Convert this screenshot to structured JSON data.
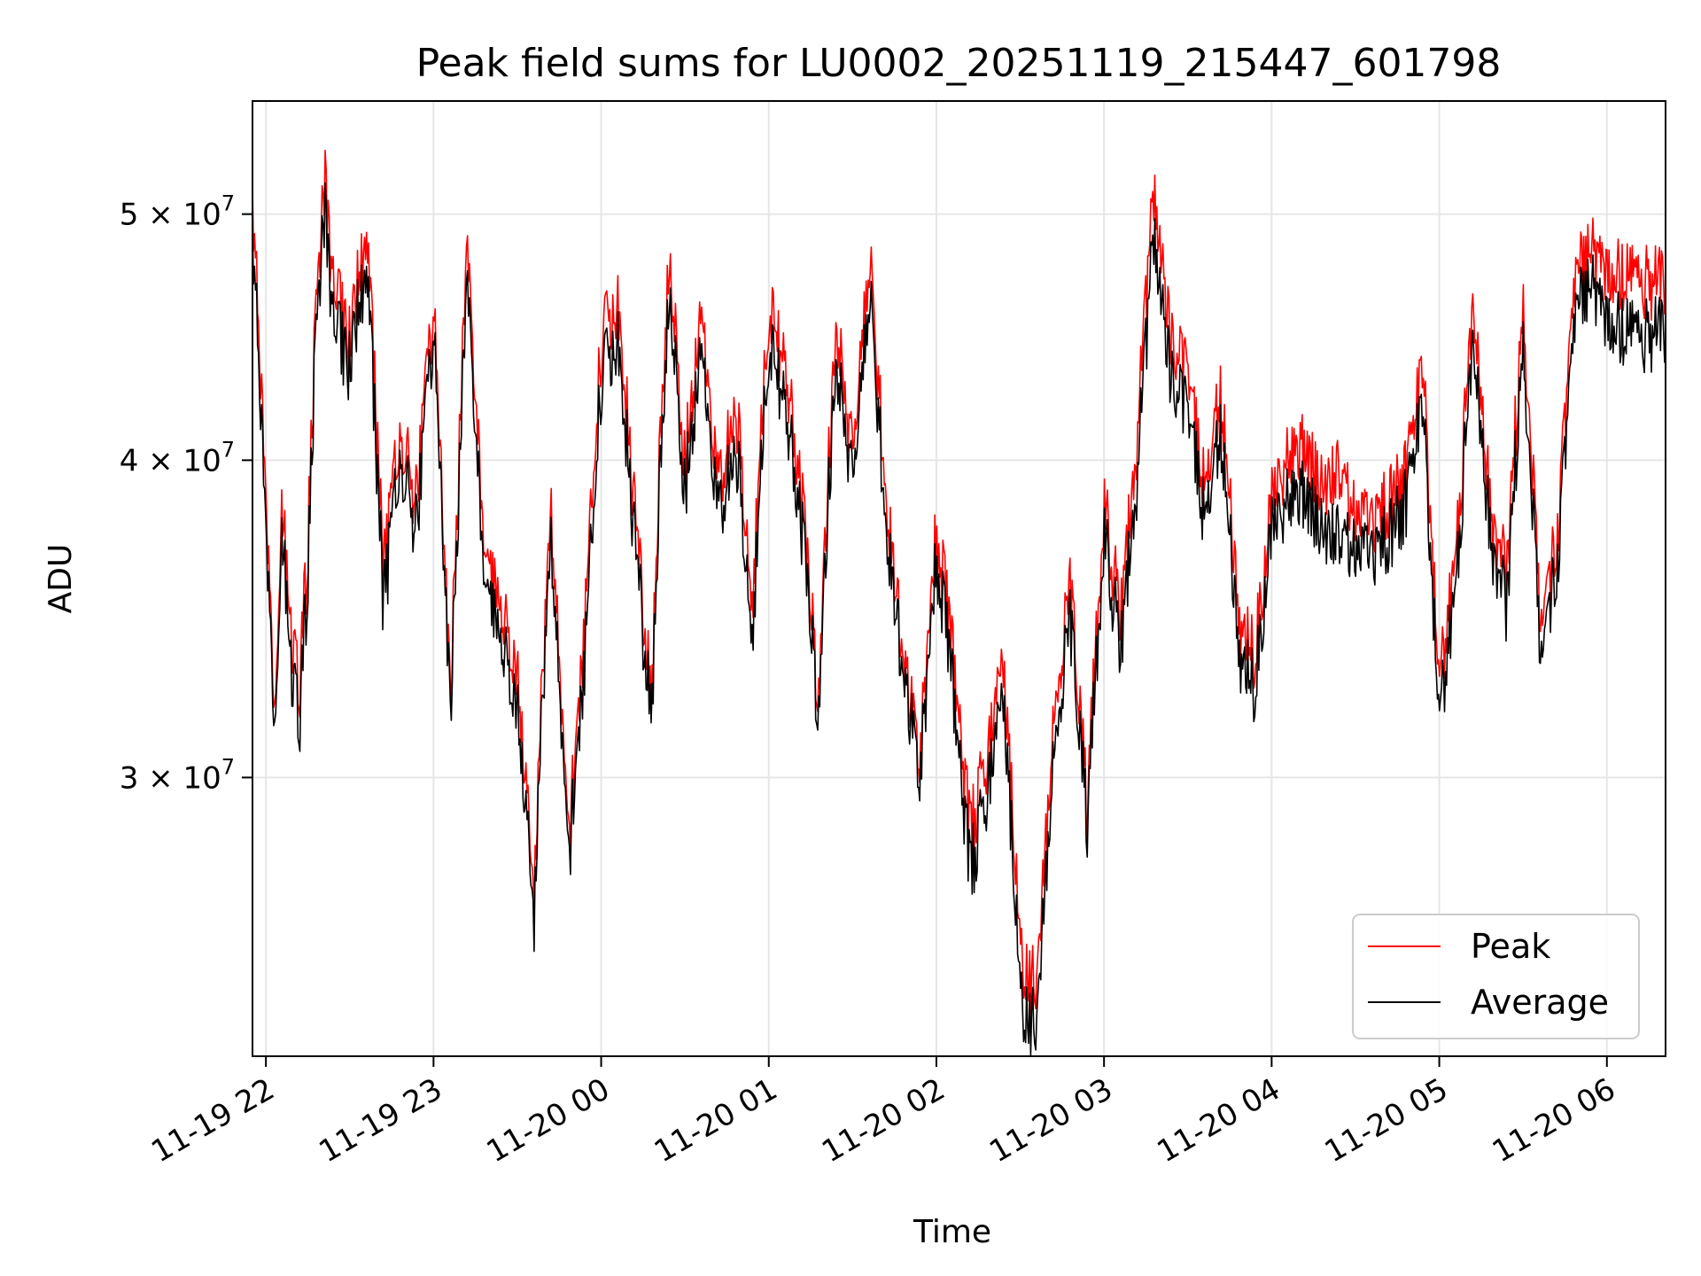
{
  "chart_data": {
    "type": "line",
    "title": "Peak field sums for LU0002_20251119_215447_601798",
    "xlabel": "Time",
    "ylabel": "ADU",
    "scale_y": "log",
    "grid": true,
    "legend_position": "lower-right",
    "xlim_hours": [
      -0.08,
      8.35
    ],
    "ylim": [
      23300000,
      55400000
    ],
    "x_ticks": [
      {
        "value": 0,
        "label": "11-19 22"
      },
      {
        "value": 1,
        "label": "11-19 23"
      },
      {
        "value": 2,
        "label": "11-20 00"
      },
      {
        "value": 3,
        "label": "11-20 01"
      },
      {
        "value": 4,
        "label": "11-20 02"
      },
      {
        "value": 5,
        "label": "11-20 03"
      },
      {
        "value": 6,
        "label": "11-20 04"
      },
      {
        "value": 7,
        "label": "11-20 05"
      },
      {
        "value": 8,
        "label": "11-20 06"
      }
    ],
    "y_ticks": [
      {
        "value": 30000000,
        "mantissa": "3",
        "exponent": "7"
      },
      {
        "value": 40000000,
        "mantissa": "4",
        "exponent": "7"
      },
      {
        "value": 50000000,
        "mantissa": "5",
        "exponent": "7"
      }
    ],
    "x_units": "hours since 2025-11-19 22:00",
    "series": [
      {
        "name": "Peak",
        "color": "#ff0000",
        "x": [
          -0.08,
          0.0,
          0.05,
          0.1,
          0.15,
          0.2,
          0.25,
          0.3,
          0.35,
          0.4,
          0.5,
          0.6,
          0.7,
          0.8,
          0.9,
          1.0,
          1.1,
          1.2,
          1.3,
          1.4,
          1.5,
          1.6,
          1.7,
          1.8,
          1.9,
          2.0,
          2.1,
          2.2,
          2.3,
          2.4,
          2.5,
          2.6,
          2.7,
          2.8,
          2.9,
          3.0,
          3.1,
          3.2,
          3.3,
          3.4,
          3.5,
          3.6,
          3.7,
          3.8,
          3.9,
          4.0,
          4.1,
          4.2,
          4.3,
          4.4,
          4.5,
          4.6,
          4.7,
          4.8,
          4.9,
          5.0,
          5.1,
          5.2,
          5.3,
          5.4,
          5.5,
          5.6,
          5.7,
          5.8,
          5.9,
          6.0,
          6.1,
          6.2,
          6.3,
          6.4,
          6.5,
          6.6,
          6.7,
          6.8,
          6.9,
          7.0,
          7.1,
          7.2,
          7.3,
          7.4,
          7.5,
          7.6,
          7.7,
          7.8,
          7.9,
          8.0,
          8.1,
          8.2,
          8.35
        ],
        "values": [
          51000000,
          38000000,
          32000000,
          38500000,
          34000000,
          32500000,
          37000000,
          46000000,
          52000000,
          47000000,
          44500000,
          49500000,
          36000000,
          41000000,
          38500000,
          46000000,
          32000000,
          48000000,
          37500000,
          35000000,
          33000000,
          27000000,
          38500000,
          28000000,
          34000000,
          44500000,
          46500000,
          38000000,
          32000000,
          48000000,
          40000000,
          46000000,
          39000000,
          42500000,
          34500000,
          46000000,
          43500000,
          38500000,
          32000000,
          45500000,
          40000000,
          48000000,
          38500000,
          33500000,
          30500000,
          37500000,
          33500000,
          28500000,
          30500000,
          33000000,
          25500000,
          24700000,
          32000000,
          35500000,
          29000000,
          38500000,
          34500000,
          41000000,
          51500000,
          44500000,
          43500000,
          39000000,
          42500000,
          34500000,
          33500000,
          38500000,
          40000000,
          40500000,
          39000000,
          39500000,
          38000000,
          37800000,
          38500000,
          39500000,
          43500000,
          32500000,
          36500000,
          46000000,
          38500000,
          36000000,
          45500000,
          35000000,
          37000000,
          47000000,
          48500000,
          47200000,
          47300000,
          47100000,
          46900000
        ]
      },
      {
        "name": "Average",
        "color": "#000000",
        "x": [
          -0.08,
          0.0,
          0.05,
          0.1,
          0.15,
          0.2,
          0.25,
          0.3,
          0.35,
          0.4,
          0.5,
          0.6,
          0.7,
          0.8,
          0.9,
          1.0,
          1.1,
          1.2,
          1.3,
          1.4,
          1.5,
          1.6,
          1.7,
          1.8,
          1.9,
          2.0,
          2.1,
          2.2,
          2.3,
          2.4,
          2.5,
          2.6,
          2.7,
          2.8,
          2.9,
          3.0,
          3.1,
          3.2,
          3.3,
          3.4,
          3.5,
          3.6,
          3.7,
          3.8,
          3.9,
          4.0,
          4.1,
          4.2,
          4.3,
          4.4,
          4.5,
          4.6,
          4.7,
          4.8,
          4.9,
          5.0,
          5.1,
          5.2,
          5.3,
          5.4,
          5.5,
          5.6,
          5.7,
          5.8,
          5.9,
          6.0,
          6.1,
          6.2,
          6.3,
          6.4,
          6.5,
          6.6,
          6.7,
          6.8,
          6.9,
          7.0,
          7.1,
          7.2,
          7.3,
          7.4,
          7.5,
          7.6,
          7.7,
          7.8,
          7.9,
          8.0,
          8.1,
          8.2,
          8.35
        ],
        "values": [
          49500000,
          37000000,
          31500000,
          37500000,
          33000000,
          31500000,
          36000000,
          45000000,
          50500000,
          45500000,
          43500000,
          48000000,
          35000000,
          40000000,
          37500000,
          45000000,
          31500000,
          46500000,
          36500000,
          34000000,
          32000000,
          26500000,
          37500000,
          27500000,
          33000000,
          43000000,
          45000000,
          37000000,
          31500000,
          46500000,
          39000000,
          44500000,
          38000000,
          41000000,
          33500000,
          44500000,
          42000000,
          37500000,
          31500000,
          44000000,
          39000000,
          46500000,
          37500000,
          33000000,
          30000000,
          36500000,
          32500000,
          27500000,
          29500000,
          32000000,
          24500000,
          23800000,
          31000000,
          34500000,
          28500000,
          37500000,
          33500000,
          39500000,
          49500000,
          43000000,
          42000000,
          38000000,
          41000000,
          33500000,
          32500000,
          37500000,
          38500000,
          38800000,
          37500000,
          37200000,
          36800000,
          36700000,
          37300000,
          38500000,
          42000000,
          31500000,
          35500000,
          44500000,
          37500000,
          35000000,
          44000000,
          34000000,
          36000000,
          45500000,
          47000000,
          45200000,
          45000000,
          44800000,
          44900000
        ]
      }
    ]
  }
}
